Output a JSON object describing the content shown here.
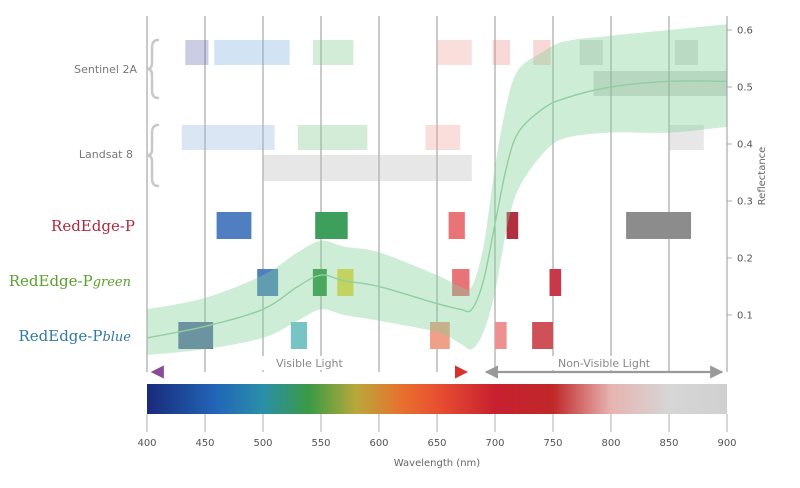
{
  "chart_data": {
    "type": "bar",
    "xlabel": "Wavelength (nm)",
    "ylabel": "Reflectance",
    "xlim": [
      400,
      900
    ],
    "ylim": [
      0,
      0.6
    ],
    "x_ticks": [
      "400",
      "450",
      "500",
      "550",
      "600",
      "650",
      "700",
      "750",
      "800",
      "850",
      "900"
    ],
    "y_ticks": [
      "0.1",
      "0.2",
      "0.3",
      "0.4",
      "0.5",
      "0.6"
    ],
    "grid": "vertical",
    "sensors": [
      {
        "id": "sentinel",
        "name": "Sentinel 2A",
        "color": "#888888",
        "bands": [
          {
            "from": 433,
            "to": 453,
            "color": "#6a70b4",
            "row": 0
          },
          {
            "from": 458,
            "to": 523,
            "color": "#7eb0dc",
            "row": 0
          },
          {
            "from": 543,
            "to": 578,
            "color": "#80c890",
            "row": 0
          },
          {
            "from": 650,
            "to": 680,
            "color": "#f0a098",
            "row": 0
          },
          {
            "from": 698,
            "to": 713,
            "color": "#ee9090",
            "row": 0
          },
          {
            "from": 733,
            "to": 748,
            "color": "#ee9090",
            "row": 0
          },
          {
            "from": 773,
            "to": 793,
            "color": "#aaaaaa",
            "row": 0
          },
          {
            "from": 855,
            "to": 875,
            "color": "#aaaaaa",
            "row": 0
          },
          {
            "from": 785,
            "to": 900,
            "color": "#999999",
            "row": 1
          }
        ]
      },
      {
        "id": "landsat",
        "name": "Landsat 8",
        "color": "#888888",
        "bands": [
          {
            "from": 430,
            "to": 510,
            "color": "#98b8e0",
            "row": 0
          },
          {
            "from": 530,
            "to": 590,
            "color": "#80c890",
            "row": 0
          },
          {
            "from": 640,
            "to": 670,
            "color": "#f0a098",
            "row": 0
          },
          {
            "from": 850,
            "to": 880,
            "color": "#bbbbbb",
            "row": 0
          },
          {
            "from": 500,
            "to": 680,
            "color": "#bbbbbb",
            "row": 1
          }
        ]
      },
      {
        "id": "rep",
        "name": "RedEdge-P",
        "suffix": "",
        "color": "#b0283c",
        "bands": [
          {
            "from": 460,
            "to": 490,
            "color": "#4f7fc0",
            "row": 0
          },
          {
            "from": 545,
            "to": 573,
            "color": "#3e9e5c",
            "row": 0
          },
          {
            "from": 660,
            "to": 674,
            "color": "#e87478",
            "row": 0
          },
          {
            "from": 710,
            "to": 720,
            "color": "#b03040",
            "row": 0
          },
          {
            "from": 813,
            "to": 869,
            "color": "#8c8c8c",
            "row": 0
          }
        ]
      },
      {
        "id": "repg",
        "name": "RedEdge-P",
        "suffix": "green",
        "color": "#5aa02c",
        "bands": [
          {
            "from": 495,
            "to": 513,
            "color": "#4f7fc0",
            "row": 0
          },
          {
            "from": 543,
            "to": 555,
            "color": "#2e8e40",
            "row": 0
          },
          {
            "from": 564,
            "to": 578,
            "color": "#ecd640",
            "row": 0
          },
          {
            "from": 663,
            "to": 678,
            "color": "#e87478",
            "row": 0
          },
          {
            "from": 747,
            "to": 757,
            "color": "#c83848",
            "row": 0
          }
        ]
      },
      {
        "id": "repb",
        "name": "RedEdge-P",
        "suffix": "blue",
        "color": "#2f78a8",
        "bands": [
          {
            "from": 427,
            "to": 457,
            "color": "#6070a8",
            "row": 0
          },
          {
            "from": 524,
            "to": 538,
            "color": "#78c4c4",
            "row": 0
          },
          {
            "from": 644,
            "to": 661,
            "color": "#f0a088",
            "row": 0
          },
          {
            "from": 700,
            "to": 710,
            "color": "#ee9090",
            "row": 0
          },
          {
            "from": 732,
            "to": 750,
            "color": "#d05058",
            "row": 0
          }
        ]
      }
    ],
    "vegetation_curve": {
      "color": "#7fcf94",
      "x": [
        400,
        450,
        500,
        530,
        550,
        570,
        600,
        650,
        670,
        680,
        690,
        700,
        710,
        720,
        740,
        760,
        800,
        850,
        900
      ],
      "mean": [
        0.06,
        0.08,
        0.11,
        0.15,
        0.17,
        0.16,
        0.15,
        0.12,
        0.11,
        0.11,
        0.16,
        0.26,
        0.36,
        0.42,
        0.46,
        0.48,
        0.5,
        0.51,
        0.51
      ],
      "lower": [
        0.03,
        0.04,
        0.06,
        0.09,
        0.11,
        0.1,
        0.09,
        0.07,
        0.05,
        0.04,
        0.07,
        0.14,
        0.25,
        0.32,
        0.38,
        0.41,
        0.42,
        0.42,
        0.43
      ],
      "upper": [
        0.11,
        0.13,
        0.17,
        0.21,
        0.23,
        0.22,
        0.21,
        0.17,
        0.15,
        0.15,
        0.22,
        0.36,
        0.47,
        0.53,
        0.56,
        0.58,
        0.59,
        0.6,
        0.61
      ]
    },
    "regions": [
      {
        "label": "Visible Light",
        "from": 400,
        "to": 680,
        "color": "#8a4a9a"
      },
      {
        "label": "Non-Visible Light",
        "from": 688,
        "to": 900,
        "color": "#999999"
      }
    ],
    "spectrum_stops": [
      {
        "nm": 400,
        "color": "#1a2a7a"
      },
      {
        "nm": 460,
        "color": "#2266b8"
      },
      {
        "nm": 500,
        "color": "#2a8fa8"
      },
      {
        "nm": 540,
        "color": "#3b9a44"
      },
      {
        "nm": 580,
        "color": "#b8a83a"
      },
      {
        "nm": 620,
        "color": "#e8702e"
      },
      {
        "nm": 650,
        "color": "#e85030"
      },
      {
        "nm": 700,
        "color": "#c82030"
      },
      {
        "nm": 750,
        "color": "#c0282a"
      },
      {
        "nm": 800,
        "color": "#e6b4b0"
      },
      {
        "nm": 850,
        "color": "#d6d6d6"
      },
      {
        "nm": 900,
        "color": "#d0d0d0"
      }
    ]
  }
}
